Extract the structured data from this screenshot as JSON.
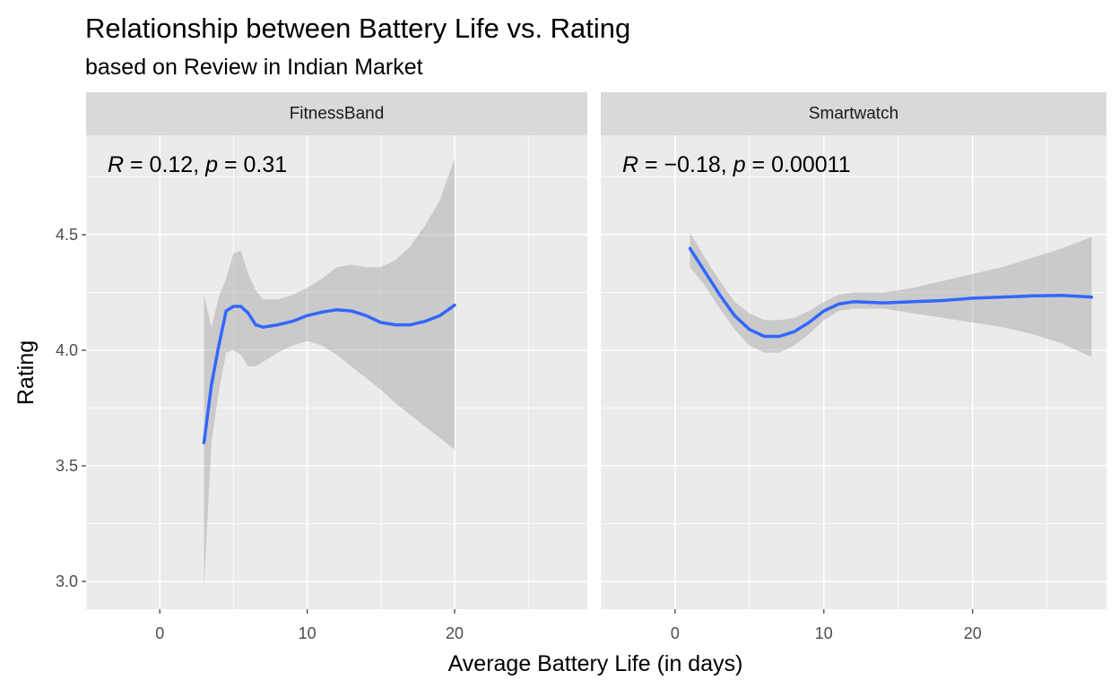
{
  "chart_data": {
    "type": "line",
    "title": "Relationship between Battery Life vs. Rating",
    "subtitle": "based on Review in Indian Market",
    "xlabel": "Average Battery Life (in days)",
    "ylabel": "Rating",
    "xlim": [
      -5,
      29
    ],
    "ylim": [
      2.88,
      4.93
    ],
    "x_ticks": [
      0,
      10,
      20
    ],
    "y_ticks": [
      3.0,
      3.5,
      4.0,
      4.5
    ],
    "y_tick_labels": [
      "3.0",
      "3.5",
      "4.0",
      "4.5"
    ],
    "grid": true,
    "colors": {
      "line": "#3366FF",
      "band": "#999999",
      "panel": "#EBEBEB",
      "strip": "#D9D9D9",
      "grid": "#FFFFFF"
    },
    "facets": [
      {
        "label": "FitnessBand",
        "annotation": {
          "r_symbol": "R",
          "r_value": " = 0.12, ",
          "p_symbol": "p",
          "p_value": " = 0.31"
        },
        "series": {
          "x": [
            3,
            3.5,
            4,
            4.5,
            5,
            5.5,
            6,
            6.5,
            7,
            8,
            9,
            10,
            11,
            12,
            13,
            14,
            15,
            16,
            17,
            18,
            19,
            20
          ],
          "y": [
            3.6,
            3.85,
            4.02,
            4.17,
            4.19,
            4.19,
            4.16,
            4.11,
            4.1,
            4.11,
            4.125,
            4.15,
            4.165,
            4.175,
            4.17,
            4.15,
            4.12,
            4.11,
            4.11,
            4.125,
            4.15,
            4.195
          ],
          "lower": [
            2.97,
            3.6,
            3.82,
            3.99,
            4.0,
            3.98,
            3.93,
            3.93,
            3.95,
            3.99,
            4.02,
            4.04,
            4.02,
            3.98,
            3.93,
            3.88,
            3.83,
            3.77,
            3.72,
            3.67,
            3.62,
            3.57
          ],
          "upper": [
            4.24,
            4.1,
            4.23,
            4.31,
            4.42,
            4.43,
            4.33,
            4.26,
            4.22,
            4.22,
            4.24,
            4.27,
            4.31,
            4.36,
            4.37,
            4.36,
            4.36,
            4.39,
            4.45,
            4.54,
            4.65,
            4.83
          ]
        }
      },
      {
        "label": "Smartwatch",
        "annotation": {
          "r_symbol": "R",
          "r_value": " = −0.18, ",
          "p_symbol": "p",
          "p_value": " = 0.00011"
        },
        "series": {
          "x": [
            1,
            2,
            3,
            4,
            5,
            6,
            7,
            8,
            9,
            10,
            11,
            12,
            14,
            16,
            18,
            20,
            22,
            24,
            26,
            28
          ],
          "y": [
            4.44,
            4.34,
            4.24,
            4.15,
            4.09,
            4.06,
            4.06,
            4.08,
            4.12,
            4.17,
            4.2,
            4.21,
            4.205,
            4.21,
            4.215,
            4.225,
            4.23,
            4.235,
            4.237,
            4.23
          ],
          "lower": [
            4.36,
            4.28,
            4.18,
            4.09,
            4.02,
            3.99,
            3.99,
            4.02,
            4.07,
            4.13,
            4.17,
            4.18,
            4.18,
            4.16,
            4.14,
            4.12,
            4.1,
            4.07,
            4.03,
            3.97
          ],
          "upper": [
            4.51,
            4.4,
            4.3,
            4.21,
            4.16,
            4.13,
            4.13,
            4.14,
            4.17,
            4.21,
            4.24,
            4.25,
            4.25,
            4.27,
            4.3,
            4.33,
            4.36,
            4.4,
            4.44,
            4.49
          ]
        }
      }
    ]
  }
}
